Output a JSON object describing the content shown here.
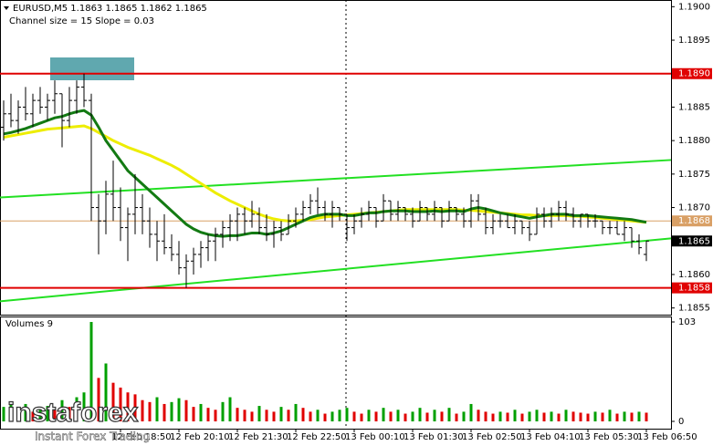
{
  "chart_data": {
    "type": "ohlc",
    "title": "EURUSD,M5  1.1863 1.1865 1.1862 1.1865",
    "subtitle": "Channel size = 15 Slope = 0.03",
    "categories": [
      null,
      null,
      null,
      null,
      null,
      null,
      null,
      null,
      null,
      null,
      null,
      null,
      null,
      null,
      null,
      null,
      "12 Feb 18:50",
      null,
      null,
      null,
      null,
      null,
      null,
      null,
      "12 Feb 20:10",
      null,
      null,
      null,
      null,
      null,
      null,
      null,
      "12 Feb 21:30",
      null,
      null,
      null,
      null,
      null,
      null,
      null,
      "12 Feb 22:50",
      null,
      null,
      null,
      null,
      null,
      null,
      null,
      "13 Feb 00:10",
      null,
      null,
      null,
      null,
      null,
      null,
      null,
      "13 Feb 01:30",
      null,
      null,
      null,
      null,
      null,
      null,
      null,
      "13 Feb 02:50",
      null,
      null,
      null,
      null,
      null,
      null,
      null,
      "13 Feb 04:10",
      null,
      null,
      null,
      null,
      null,
      null,
      null,
      "13 Feb 05:30",
      null,
      null,
      null,
      null,
      null,
      null,
      null,
      "13 Feb 06:50"
    ],
    "ohlc": [
      [
        1.1882,
        1.1886,
        1.188,
        1.1884
      ],
      [
        1.1884,
        1.1887,
        1.1882,
        1.1883
      ],
      [
        1.1883,
        1.1886,
        1.1881,
        1.1885
      ],
      [
        1.1885,
        1.1888,
        1.1883,
        1.1884
      ],
      [
        1.1884,
        1.1887,
        1.1882,
        1.1886
      ],
      [
        1.1886,
        1.1888,
        1.1884,
        1.1885
      ],
      [
        1.1885,
        1.1887,
        1.1883,
        1.1886
      ],
      [
        1.1886,
        1.1889,
        1.1884,
        1.1887
      ],
      [
        1.1887,
        1.1887,
        1.1879,
        1.1883
      ],
      [
        1.1883,
        1.1888,
        1.1882,
        1.1886
      ],
      [
        1.1886,
        1.1889,
        1.1884,
        1.1888
      ],
      [
        1.1888,
        1.189,
        1.1885,
        1.1886
      ],
      [
        1.1886,
        1.1887,
        1.1868,
        1.187
      ],
      [
        1.187,
        1.1872,
        1.1863,
        1.1868
      ],
      [
        1.1868,
        1.1874,
        1.1866,
        1.1872
      ],
      [
        1.1872,
        1.1877,
        1.1868,
        1.187
      ],
      [
        1.187,
        1.1873,
        1.1865,
        1.1867
      ],
      [
        1.1867,
        1.187,
        1.1862,
        1.1869
      ],
      [
        1.1869,
        1.1875,
        1.1866,
        1.187
      ],
      [
        1.187,
        1.1872,
        1.1866,
        1.1868
      ],
      [
        1.1868,
        1.187,
        1.1864,
        1.1866
      ],
      [
        1.1866,
        1.1868,
        1.1862,
        1.1865
      ],
      [
        1.1865,
        1.1869,
        1.1863,
        1.1864
      ],
      [
        1.1864,
        1.1866,
        1.1862,
        1.1863
      ],
      [
        1.1863,
        1.1865,
        1.186,
        1.1861
      ],
      [
        1.1861,
        1.1863,
        1.1858,
        1.1862
      ],
      [
        1.1862,
        1.1864,
        1.186,
        1.1863
      ],
      [
        1.1863,
        1.1865,
        1.1861,
        1.1864
      ],
      [
        1.1864,
        1.1866,
        1.1862,
        1.1865
      ],
      [
        1.1865,
        1.1867,
        1.1862,
        1.1866
      ],
      [
        1.1866,
        1.1868,
        1.1864,
        1.1867
      ],
      [
        1.1867,
        1.1869,
        1.1865,
        1.1868
      ],
      [
        1.1868,
        1.187,
        1.1865,
        1.1869
      ],
      [
        1.1869,
        1.187,
        1.1866,
        1.1868
      ],
      [
        1.1868,
        1.1871,
        1.1867,
        1.1869
      ],
      [
        1.1869,
        1.187,
        1.1866,
        1.1867
      ],
      [
        1.1867,
        1.1869,
        1.1865,
        1.1866
      ],
      [
        1.1866,
        1.1868,
        1.1864,
        1.1867
      ],
      [
        1.1867,
        1.1868,
        1.1865,
        1.1866
      ],
      [
        1.1866,
        1.1869,
        1.1866,
        1.1868
      ],
      [
        1.1868,
        1.187,
        1.1867,
        1.1869
      ],
      [
        1.1869,
        1.1871,
        1.1868,
        1.187
      ],
      [
        1.187,
        1.1872,
        1.1869,
        1.1871
      ],
      [
        1.1871,
        1.1873,
        1.1869,
        1.187
      ],
      [
        1.187,
        1.1871,
        1.1868,
        1.1869
      ],
      [
        1.1869,
        1.1871,
        1.1867,
        1.187
      ],
      [
        1.187,
        1.187,
        1.1868,
        1.1869
      ],
      [
        1.1869,
        1.1869,
        1.1865,
        1.1867
      ],
      [
        1.1867,
        1.1869,
        1.1866,
        1.1868
      ],
      [
        1.1868,
        1.187,
        1.1867,
        1.1869
      ],
      [
        1.1869,
        1.1871,
        1.1868,
        1.187
      ],
      [
        1.187,
        1.187,
        1.1867,
        1.1868
      ],
      [
        1.1868,
        1.1872,
        1.1868,
        1.1871
      ],
      [
        1.1871,
        1.1871,
        1.1868,
        1.1869
      ],
      [
        1.1869,
        1.1871,
        1.1868,
        1.187
      ],
      [
        1.187,
        1.187,
        1.1868,
        1.1869
      ],
      [
        1.1869,
        1.187,
        1.1867,
        1.1868
      ],
      [
        1.1868,
        1.1871,
        1.1868,
        1.187
      ],
      [
        1.187,
        1.187,
        1.1868,
        1.1869
      ],
      [
        1.1869,
        1.1871,
        1.1868,
        1.187
      ],
      [
        1.187,
        1.187,
        1.1867,
        1.1868
      ],
      [
        1.1868,
        1.1871,
        1.1868,
        1.187
      ],
      [
        1.187,
        1.187,
        1.1868,
        1.1869
      ],
      [
        1.1869,
        1.187,
        1.1867,
        1.1868
      ],
      [
        1.1868,
        1.1872,
        1.1867,
        1.1871
      ],
      [
        1.1871,
        1.1872,
        1.1868,
        1.1869
      ],
      [
        1.1869,
        1.187,
        1.1866,
        1.1867
      ],
      [
        1.1867,
        1.1869,
        1.1866,
        1.1868
      ],
      [
        1.1868,
        1.1869,
        1.1867,
        1.1868
      ],
      [
        1.1868,
        1.1869,
        1.1867,
        1.1867
      ],
      [
        1.1867,
        1.1869,
        1.1866,
        1.1868
      ],
      [
        1.1868,
        1.1868,
        1.1866,
        1.1867
      ],
      [
        1.1867,
        1.1868,
        1.1865,
        1.1866
      ],
      [
        1.1866,
        1.187,
        1.1866,
        1.1869
      ],
      [
        1.1869,
        1.187,
        1.1867,
        1.1868
      ],
      [
        1.1868,
        1.187,
        1.1867,
        1.1869
      ],
      [
        1.1869,
        1.1871,
        1.1868,
        1.187
      ],
      [
        1.187,
        1.1871,
        1.1868,
        1.1869
      ],
      [
        1.1869,
        1.187,
        1.1867,
        1.1868
      ],
      [
        1.1868,
        1.1869,
        1.1867,
        1.1869
      ],
      [
        1.1869,
        1.1869,
        1.1867,
        1.1868
      ],
      [
        1.1868,
        1.1869,
        1.1867,
        1.1868
      ],
      [
        1.1868,
        1.1868,
        1.1866,
        1.1867
      ],
      [
        1.1867,
        1.1868,
        1.1866,
        1.1867
      ],
      [
        1.1867,
        1.1868,
        1.1866,
        1.1866
      ],
      [
        1.1866,
        1.1868,
        1.1865,
        1.1867
      ],
      [
        1.1867,
        1.1867,
        1.1864,
        1.1865
      ],
      [
        1.1865,
        1.1866,
        1.1863,
        1.1864
      ],
      [
        1.1863,
        1.1865,
        1.1862,
        1.1865
      ]
    ],
    "bar_color": "#000000",
    "lines": [
      {
        "color": "#eded00",
        "width": 3,
        "values": [
          1.18805,
          1.18807,
          1.18809,
          1.18811,
          1.18813,
          1.18815,
          1.18817,
          1.18818,
          1.18819,
          1.1882,
          1.18821,
          1.18822,
          1.18818,
          1.18812,
          1.18806,
          1.188,
          1.18795,
          1.1879,
          1.18786,
          1.18782,
          1.18778,
          1.18773,
          1.18768,
          1.18763,
          1.18757,
          1.1875,
          1.18743,
          1.18736,
          1.18729,
          1.18722,
          1.18716,
          1.1871,
          1.18705,
          1.187,
          1.18695,
          1.1869,
          1.18686,
          1.18683,
          1.18681,
          1.1868,
          1.1868,
          1.18681,
          1.18682,
          1.18684,
          1.18686,
          1.18687,
          1.18688,
          1.18689,
          1.1869,
          1.18691,
          1.18692,
          1.18693,
          1.18694,
          1.18695,
          1.18696,
          1.18697,
          1.18697,
          1.18697,
          1.18697,
          1.18697,
          1.18697,
          1.18697,
          1.18697,
          1.18696,
          1.18696,
          1.18695,
          1.18694,
          1.18693,
          1.18692,
          1.18691,
          1.1869,
          1.18689,
          1.18689,
          1.18688,
          1.18688,
          1.18688,
          1.18688,
          1.18688,
          1.18687,
          1.18687,
          1.18686,
          1.18685,
          1.18684,
          1.18683,
          1.18682,
          1.18681,
          1.1868,
          1.18679,
          1.18678
        ]
      },
      {
        "color": "#137a13",
        "width": 3,
        "values": [
          1.1881,
          1.18812,
          1.18815,
          1.18818,
          1.18822,
          1.18826,
          1.1883,
          1.18834,
          1.18836,
          1.1884,
          1.18843,
          1.18845,
          1.18838,
          1.1882,
          1.188,
          1.18785,
          1.1877,
          1.18755,
          1.18745,
          1.18735,
          1.18725,
          1.18715,
          1.18705,
          1.18695,
          1.18685,
          1.18675,
          1.18668,
          1.18663,
          1.1866,
          1.18658,
          1.18657,
          1.18658,
          1.18658,
          1.1866,
          1.18662,
          1.18662,
          1.1866,
          1.18662,
          1.18665,
          1.1867,
          1.18675,
          1.1868,
          1.18685,
          1.18688,
          1.1869,
          1.1869,
          1.1869,
          1.18688,
          1.18688,
          1.1869,
          1.18692,
          1.18692,
          1.18694,
          1.18695,
          1.18695,
          1.18695,
          1.18694,
          1.18694,
          1.18694,
          1.18695,
          1.18694,
          1.18695,
          1.18695,
          1.18694,
          1.18698,
          1.187,
          1.18698,
          1.18695,
          1.18692,
          1.1869,
          1.18688,
          1.18686,
          1.18684,
          1.18686,
          1.18688,
          1.1869,
          1.1869,
          1.1869,
          1.18688,
          1.18688,
          1.18688,
          1.18687,
          1.18686,
          1.18685,
          1.18684,
          1.18683,
          1.18682,
          1.1868,
          1.18678
        ]
      }
    ],
    "channel": {
      "color": "#22e022",
      "upper": [
        1.18715,
        1.18771
      ],
      "lower": [
        1.1856,
        1.18654
      ]
    },
    "levels": [
      {
        "value": 1.189,
        "label": "1.1890",
        "color": "#e00000"
      },
      {
        "value": 1.1858,
        "label": "1.1858",
        "color": "#e00000"
      },
      {
        "value": 1.1868,
        "label": "1.1868",
        "color": "#d9a066"
      }
    ],
    "current_price": {
      "value": 1.1865,
      "label": "1.1865"
    },
    "ylim": [
      1.1854,
      1.1901
    ],
    "yticks": [
      {
        "value": 1.19,
        "label": "1.1900"
      },
      1.1895,
      1.1885,
      {
        "value": 1.188,
        "label": "1.1880"
      },
      1.1875,
      {
        "value": 1.187,
        "label": "1.1870"
      },
      {
        "value": 1.186,
        "label": "1.1860"
      },
      1.1855
    ],
    "volumes": {
      "title": "Volumes 9",
      "up_color": "#00a000",
      "down_color": "#e00000",
      "ylim": [
        0,
        103
      ],
      "yticks": [
        103,
        0
      ],
      "values": [
        15,
        20,
        12,
        18,
        10,
        14,
        16,
        12,
        22,
        15,
        25,
        30,
        103,
        45,
        60,
        40,
        35,
        30,
        28,
        22,
        20,
        25,
        18,
        20,
        24,
        22,
        15,
        18,
        14,
        12,
        20,
        25,
        14,
        12,
        10,
        16,
        12,
        10,
        15,
        12,
        18,
        14,
        10,
        12,
        8,
        10,
        12,
        14,
        10,
        8,
        12,
        10,
        14,
        10,
        12,
        8,
        10,
        14,
        9,
        12,
        10,
        14,
        8,
        10,
        18,
        12,
        10,
        8,
        10,
        9,
        12,
        8,
        10,
        12,
        9,
        10,
        8,
        12,
        10,
        9,
        8,
        10,
        9,
        12,
        8,
        10,
        9,
        10,
        9
      ]
    },
    "watermark": {
      "brand": "instaforex",
      "tagline": "Instant Forex Trading"
    }
  }
}
